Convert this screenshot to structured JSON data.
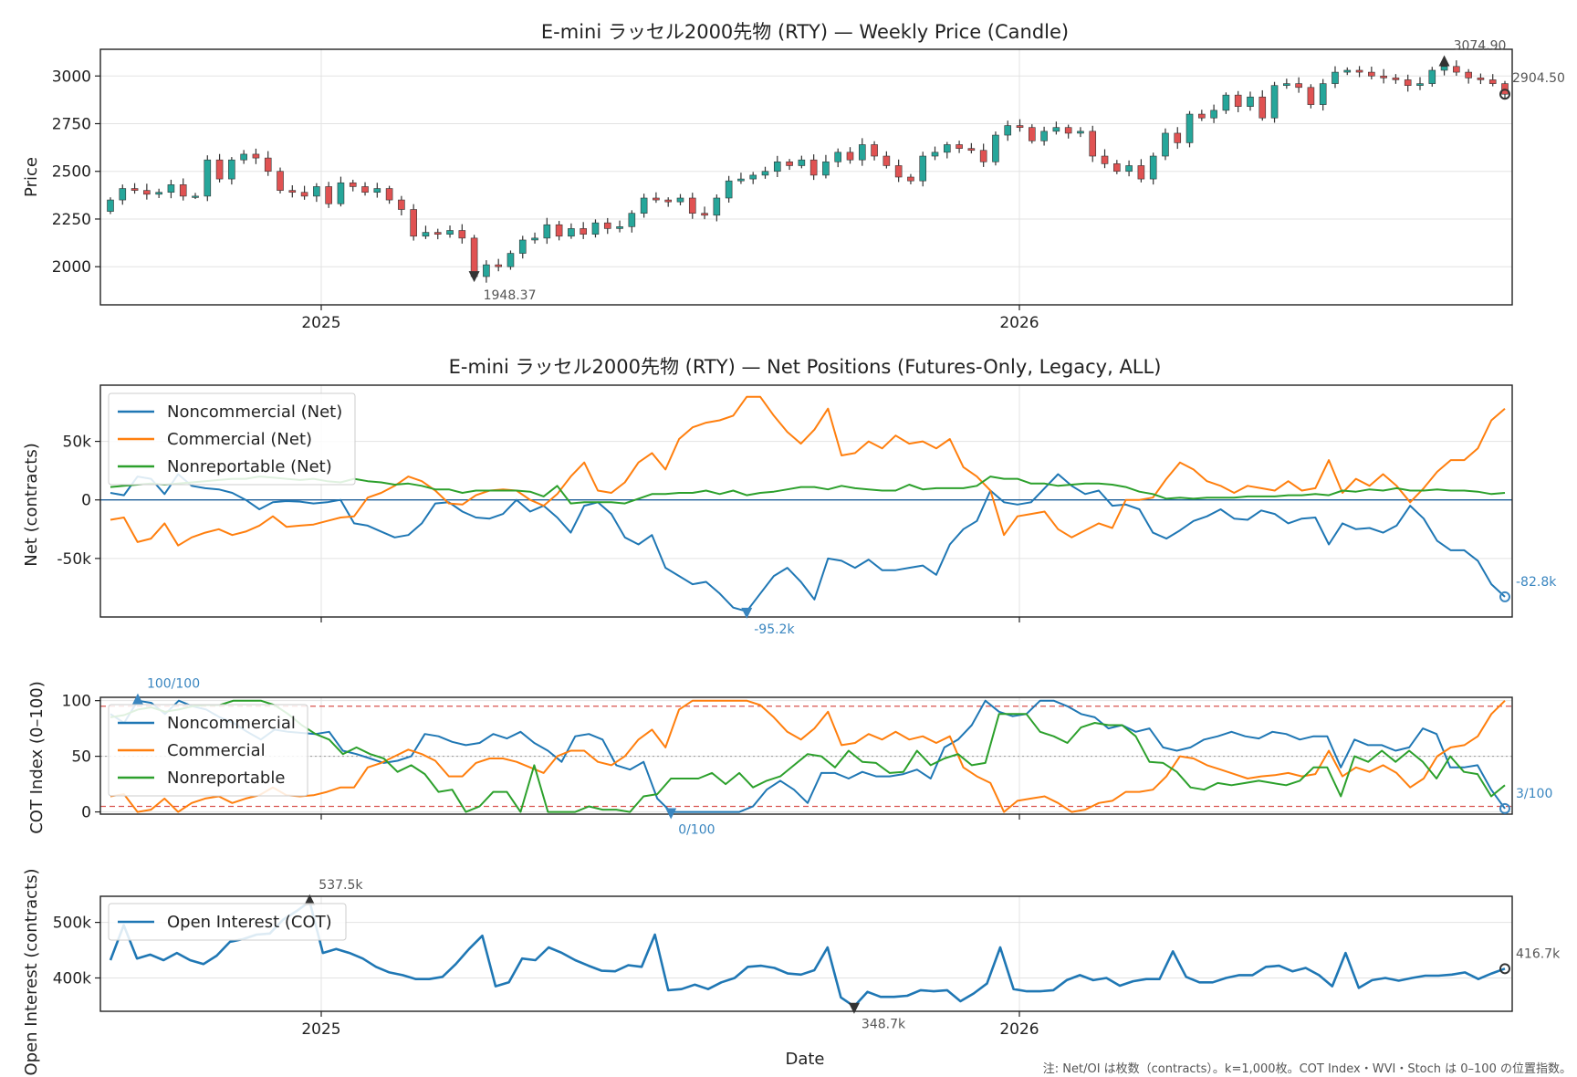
{
  "note": "注: Net/OI は枚数（contracts）。k=1,000枚。COT Index・WVI・Stoch は 0–100 の位置指数。",
  "chart_data": [
    {
      "id": "price",
      "type": "candlestick",
      "title": "E-mini ラッセル2000先物 (RTY) — Weekly Price (Candle)",
      "ylabel": "Price",
      "ylim": [
        1800,
        3140
      ],
      "yticks": [
        "2000",
        "2250",
        "2500",
        "2750",
        "3000"
      ],
      "x_tick_labels": [
        "2025",
        "2026"
      ],
      "colors": {
        "up": "#26a69a",
        "down": "#e05252"
      },
      "annotations": {
        "max_label": "3074.90",
        "min_label": "1948.37",
        "last_label": "2904.50"
      },
      "closes": [
        2350,
        2410,
        2400,
        2380,
        2390,
        2430,
        2370,
        2370,
        2560,
        2460,
        2560,
        2590,
        2570,
        2500,
        2400,
        2390,
        2370,
        2420,
        2330,
        2440,
        2420,
        2390,
        2410,
        2350,
        2300,
        2160,
        2180,
        2170,
        2190,
        2150,
        1948.37,
        2010,
        2000,
        2070,
        2140,
        2150,
        2220,
        2160,
        2200,
        2170,
        2230,
        2200,
        2210,
        2280,
        2360,
        2350,
        2340,
        2360,
        2280,
        2270,
        2360,
        2450,
        2460,
        2480,
        2500,
        2550,
        2530,
        2560,
        2480,
        2550,
        2600,
        2560,
        2640,
        2580,
        2530,
        2470,
        2450,
        2580,
        2600,
        2640,
        2620,
        2610,
        2550,
        2690,
        2740,
        2730,
        2660,
        2710,
        2730,
        2700,
        2710,
        2580,
        2540,
        2500,
        2530,
        2460,
        2580,
        2700,
        2650,
        2800,
        2780,
        2820,
        2900,
        2840,
        2890,
        2780,
        2950,
        2960,
        2940,
        2850,
        2960,
        3020,
        3030,
        3020,
        3000,
        2990,
        2980,
        2950,
        2960,
        3030,
        3050,
        3020,
        2990,
        2980,
        2960,
        2904.5
      ]
    },
    {
      "id": "net",
      "type": "line",
      "title": "E-mini ラッセル2000先物 (RTY) — Net Positions (Futures-Only, Legacy, ALL)",
      "ylabel": "Net (contracts)",
      "ylim": [
        -100000,
        98000
      ],
      "yticks": [
        "-50k",
        "0",
        "50k"
      ],
      "annotations": {
        "min_label": "-95.2k",
        "last_label": "-82.8k"
      },
      "series": [
        {
          "name": "Noncommercial (Net)",
          "color": "#1f77b4",
          "values": [
            6000,
            4000,
            20000,
            18000,
            5000,
            22000,
            12000,
            10000,
            9000,
            6000,
            0,
            -8000,
            -2000,
            -1000,
            -1500,
            -3000,
            -2000,
            0,
            -20000,
            -22000,
            -27000,
            -32000,
            -30000,
            -20000,
            -3000,
            -2000,
            -10000,
            -15000,
            -16000,
            -12000,
            0,
            -10000,
            -5000,
            -15000,
            -28000,
            -5000,
            -2000,
            -12000,
            -32000,
            -38000,
            -30000,
            -58000,
            -65000,
            -72000,
            -70000,
            -80000,
            -92000,
            -95200,
            -80000,
            -65000,
            -58000,
            -70000,
            -85000,
            -50000,
            -52000,
            -58000,
            -51000,
            -60000,
            -60000,
            -58000,
            -56000,
            -64000,
            -38000,
            -25000,
            -18000,
            8000,
            -2000,
            -4000,
            -2000,
            10000,
            22000,
            12000,
            5000,
            8000,
            -5000,
            -4000,
            -8000,
            -28000,
            -33000,
            -26000,
            -18000,
            -14000,
            -8000,
            -16000,
            -17000,
            -9000,
            -12000,
            -20000,
            -16000,
            -15000,
            -38000,
            -20000,
            -25000,
            -24000,
            -28000,
            -22000,
            -5000,
            -16000,
            -35000,
            -43000,
            -43000,
            -52000,
            -72000,
            -82800
          ]
        },
        {
          "name": "Commercial (Net)",
          "color": "#ff7f0e",
          "values": [
            -17000,
            -15000,
            -36000,
            -33000,
            -20000,
            -39000,
            -32000,
            -28000,
            -25000,
            -30000,
            -27000,
            -22000,
            -14000,
            -23000,
            -22000,
            -21000,
            -18000,
            -15000,
            -14000,
            2000,
            6000,
            12000,
            20000,
            16000,
            8000,
            -3000,
            -4000,
            4000,
            8000,
            9000,
            8000,
            0,
            -5000,
            5000,
            20000,
            32000,
            8000,
            6000,
            15000,
            32000,
            40000,
            26000,
            52000,
            62000,
            66000,
            68000,
            72000,
            88000,
            88000,
            72000,
            58000,
            48000,
            60000,
            78000,
            38000,
            40000,
            50000,
            44000,
            55000,
            48000,
            50000,
            44000,
            52000,
            28000,
            20000,
            8000,
            -30000,
            -14000,
            -12000,
            -10000,
            -25000,
            -32000,
            -26000,
            -20000,
            -24000,
            0,
            0,
            2000,
            18000,
            32000,
            26000,
            16000,
            12000,
            6000,
            12000,
            10000,
            8000,
            16000,
            8000,
            10000,
            34000,
            6000,
            18000,
            12000,
            22000,
            12000,
            -2000,
            10000,
            24000,
            34000,
            34000,
            44000,
            68000,
            78000
          ]
        },
        {
          "name": "Nonreportable (Net)",
          "color": "#2ca02c",
          "values": [
            11000,
            12000,
            13000,
            14000,
            13000,
            14000,
            15000,
            16000,
            17000,
            18000,
            18000,
            20000,
            19000,
            18000,
            17000,
            18000,
            16000,
            15000,
            18000,
            16000,
            15000,
            13000,
            14000,
            12000,
            9000,
            9000,
            6000,
            8000,
            8000,
            8000,
            8000,
            7000,
            3000,
            12000,
            -3000,
            -2000,
            -2000,
            -2000,
            -3000,
            1000,
            5000,
            5000,
            6000,
            6000,
            8000,
            5000,
            8000,
            4000,
            6000,
            7000,
            9000,
            11000,
            11000,
            9000,
            12000,
            10000,
            9000,
            8000,
            8000,
            13000,
            9000,
            10000,
            10000,
            10000,
            12000,
            20000,
            18000,
            18000,
            14000,
            14000,
            12000,
            13000,
            14000,
            14000,
            13000,
            11000,
            7000,
            5000,
            1000,
            2000,
            1000,
            2000,
            2000,
            2000,
            3000,
            3000,
            3000,
            4000,
            4000,
            5000,
            4000,
            8000,
            7000,
            9000,
            8000,
            10000,
            8000,
            8000,
            9000,
            8000,
            8000,
            7000,
            5000,
            6000
          ]
        }
      ]
    },
    {
      "id": "cot",
      "type": "line",
      "ylabel": "COT Index (0–100)",
      "ylim": [
        -2,
        103
      ],
      "yticks": [
        "0",
        "50",
        "100"
      ],
      "thresholds": [
        5,
        95
      ],
      "annotations": {
        "max_label": "100/100",
        "min_label": "0/100",
        "last_label": "3/100"
      },
      "series": [
        {
          "name": "Noncommercial",
          "color": "#1f77b4",
          "values": [
            88,
            80,
            100,
            98,
            88,
            100,
            95,
            92,
            85,
            80,
            72,
            65,
            74,
            72,
            71,
            70,
            72,
            55,
            52,
            48,
            44,
            46,
            50,
            70,
            68,
            63,
            60,
            62,
            70,
            66,
            72,
            62,
            55,
            45,
            68,
            70,
            65,
            42,
            38,
            45,
            12,
            0,
            0,
            0,
            0,
            0,
            0,
            5,
            20,
            28,
            20,
            8,
            35,
            35,
            30,
            36,
            32,
            32,
            34,
            38,
            30,
            58,
            65,
            78,
            100,
            90,
            86,
            88,
            100,
            100,
            95,
            88,
            85,
            75,
            78,
            72,
            75,
            58,
            55,
            58,
            65,
            68,
            72,
            68,
            66,
            72,
            70,
            65,
            68,
            68,
            40,
            65,
            60,
            60,
            55,
            58,
            75,
            70,
            40,
            40,
            42,
            20,
            3
          ]
        },
        {
          "name": "Commercial",
          "color": "#ff7f0e",
          "values": [
            14,
            16,
            0,
            2,
            12,
            0,
            8,
            12,
            14,
            8,
            12,
            15,
            22,
            15,
            14,
            15,
            18,
            22,
            22,
            40,
            44,
            50,
            56,
            52,
            46,
            32,
            32,
            44,
            48,
            48,
            45,
            40,
            35,
            50,
            55,
            55,
            45,
            42,
            50,
            65,
            74,
            58,
            92,
            100,
            100,
            100,
            100,
            100,
            96,
            85,
            72,
            65,
            75,
            90,
            60,
            62,
            70,
            65,
            72,
            65,
            68,
            62,
            68,
            40,
            32,
            26,
            0,
            10,
            12,
            14,
            8,
            0,
            2,
            8,
            10,
            18,
            18,
            20,
            32,
            50,
            48,
            42,
            38,
            34,
            30,
            32,
            33,
            35,
            32,
            34,
            55,
            32,
            40,
            36,
            42,
            35,
            22,
            30,
            50,
            58,
            60,
            68,
            88,
            100
          ]
        },
        {
          "name": "Nonreportable",
          "color": "#2ca02c",
          "values": [
            85,
            87,
            92,
            94,
            90,
            92,
            95,
            96,
            96,
            100,
            100,
            100,
            96,
            88,
            78,
            70,
            65,
            52,
            58,
            52,
            48,
            36,
            42,
            34,
            18,
            20,
            0,
            5,
            18,
            18,
            0,
            42,
            0,
            0,
            0,
            5,
            2,
            2,
            0,
            14,
            16,
            30,
            30,
            30,
            35,
            25,
            35,
            22,
            28,
            32,
            42,
            52,
            50,
            40,
            55,
            45,
            44,
            35,
            36,
            55,
            42,
            48,
            52,
            42,
            44,
            88,
            88,
            88,
            72,
            68,
            62,
            76,
            80,
            78,
            78,
            68,
            45,
            44,
            36,
            22,
            20,
            26,
            24,
            26,
            28,
            26,
            24,
            28,
            40,
            40,
            14,
            50,
            45,
            55,
            45,
            55,
            45,
            30,
            50,
            36,
            34,
            14,
            24
          ]
        }
      ]
    },
    {
      "id": "oi",
      "type": "line",
      "xlabel": "Date",
      "ylabel": "Open Interest (contracts)",
      "ylim": [
        340000,
        547000
      ],
      "yticks": [
        "400k",
        "500k"
      ],
      "x_tick_labels": [
        "2025",
        "2026"
      ],
      "annotations": {
        "max_label": "537.5k",
        "min_label": "348.7k",
        "last_label": "416.7k"
      },
      "series": [
        {
          "name": "Open Interest (COT)",
          "color": "#1f77b4",
          "values": [
            432000,
            495000,
            435000,
            442000,
            432000,
            445000,
            432000,
            425000,
            440000,
            465000,
            470000,
            478000,
            480000,
            505000,
            520000,
            537500,
            445000,
            452000,
            445000,
            435000,
            420000,
            410000,
            405000,
            398000,
            398000,
            402000,
            425000,
            452000,
            476000,
            385000,
            392000,
            435000,
            432000,
            455000,
            445000,
            432000,
            422000,
            413000,
            412000,
            423000,
            420000,
            478000,
            378000,
            380000,
            388000,
            380000,
            392000,
            400000,
            420000,
            422000,
            418000,
            408000,
            406000,
            414000,
            455000,
            365000,
            348700,
            375000,
            366000,
            366000,
            368000,
            378000,
            376000,
            378000,
            358000,
            372000,
            390000,
            455000,
            380000,
            376000,
            376000,
            378000,
            396000,
            405000,
            396000,
            400000,
            386000,
            394000,
            398000,
            398000,
            448000,
            402000,
            392000,
            392000,
            400000,
            405000,
            405000,
            420000,
            422000,
            412000,
            418000,
            405000,
            385000,
            445000,
            382000,
            396000,
            400000,
            395000,
            400000,
            404000,
            404000,
            406000,
            410000,
            398000,
            408000,
            416700
          ]
        }
      ]
    }
  ]
}
